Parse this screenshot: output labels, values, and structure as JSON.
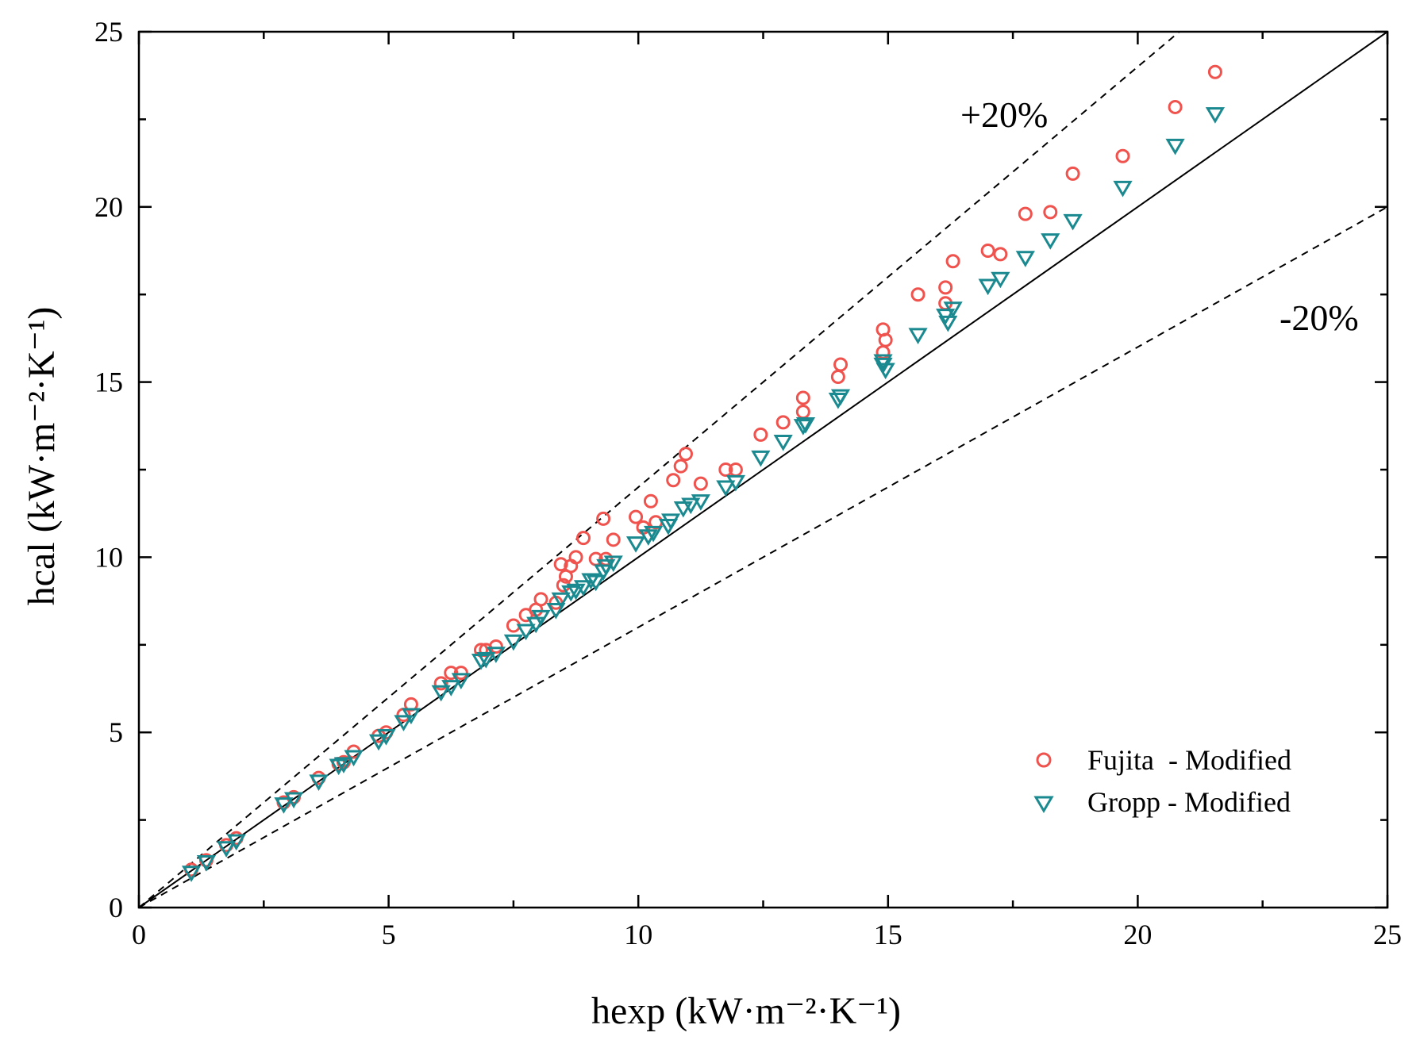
{
  "chart_data": {
    "type": "scatter",
    "xlabel": "hexp (kW·m⁻²·K⁻¹)",
    "ylabel": "hcal (kW·m⁻²·K⁻¹)",
    "xlim": [
      0,
      25
    ],
    "ylim": [
      0,
      25
    ],
    "xticks": [
      "0",
      "5",
      "10",
      "15",
      "20",
      "25"
    ],
    "yticks": [
      "0",
      "5",
      "10",
      "15",
      "20",
      "25"
    ],
    "grid": false,
    "legend_position": "bottom-right",
    "reference_lines": [
      {
        "name": "parity",
        "style": "solid",
        "slope": 1.0
      },
      {
        "name": "+20%",
        "style": "dashed",
        "slope": 1.2,
        "label": "+20%"
      },
      {
        "name": "-20%",
        "style": "dashed",
        "slope": 0.8,
        "label": "-20%"
      }
    ],
    "series": [
      {
        "name": "Fujita  - Modified",
        "marker": "circle",
        "color": "#f0524d",
        "points": [
          [
            1.05,
            1.08
          ],
          [
            1.35,
            1.35
          ],
          [
            1.75,
            1.78
          ],
          [
            1.95,
            1.98
          ],
          [
            2.9,
            3.0
          ],
          [
            3.1,
            3.15
          ],
          [
            3.6,
            3.7
          ],
          [
            4.0,
            4.1
          ],
          [
            4.1,
            4.15
          ],
          [
            4.3,
            4.45
          ],
          [
            4.8,
            4.9
          ],
          [
            4.95,
            5.0
          ],
          [
            5.3,
            5.5
          ],
          [
            5.45,
            5.8
          ],
          [
            6.05,
            6.4
          ],
          [
            6.25,
            6.7
          ],
          [
            6.45,
            6.7
          ],
          [
            6.85,
            7.35
          ],
          [
            6.95,
            7.35
          ],
          [
            7.15,
            7.45
          ],
          [
            7.5,
            8.05
          ],
          [
            7.75,
            8.35
          ],
          [
            7.95,
            8.5
          ],
          [
            8.05,
            8.8
          ],
          [
            8.35,
            8.7
          ],
          [
            8.45,
            9.8
          ],
          [
            8.5,
            9.2
          ],
          [
            8.55,
            9.45
          ],
          [
            8.65,
            9.75
          ],
          [
            8.75,
            10.0
          ],
          [
            8.9,
            10.55
          ],
          [
            9.15,
            9.95
          ],
          [
            9.3,
            11.1
          ],
          [
            9.35,
            9.95
          ],
          [
            9.5,
            10.5
          ],
          [
            9.95,
            11.15
          ],
          [
            10.1,
            10.85
          ],
          [
            10.25,
            11.6
          ],
          [
            10.35,
            11.0
          ],
          [
            10.7,
            12.2
          ],
          [
            10.85,
            12.6
          ],
          [
            10.95,
            12.95
          ],
          [
            11.25,
            12.1
          ],
          [
            11.75,
            12.5
          ],
          [
            11.95,
            12.5
          ],
          [
            12.45,
            13.5
          ],
          [
            12.9,
            13.85
          ],
          [
            13.3,
            14.55
          ],
          [
            13.3,
            14.15
          ],
          [
            14.0,
            15.15
          ],
          [
            14.05,
            15.5
          ],
          [
            14.9,
            16.5
          ],
          [
            14.95,
            16.2
          ],
          [
            14.9,
            15.85
          ],
          [
            15.6,
            17.5
          ],
          [
            16.15,
            17.7
          ],
          [
            16.15,
            17.25
          ],
          [
            16.3,
            18.45
          ],
          [
            17.0,
            18.75
          ],
          [
            17.25,
            18.65
          ],
          [
            17.75,
            19.8
          ],
          [
            18.25,
            19.85
          ],
          [
            18.7,
            20.95
          ],
          [
            19.7,
            21.45
          ],
          [
            20.75,
            22.85
          ],
          [
            21.55,
            23.85
          ]
        ]
      },
      {
        "name": "Gropp - Modified",
        "marker": "triangle-down",
        "color": "#1a8a90",
        "points": [
          [
            1.05,
            1.0
          ],
          [
            1.35,
            1.3
          ],
          [
            1.75,
            1.7
          ],
          [
            1.95,
            1.9
          ],
          [
            2.9,
            2.95
          ],
          [
            3.1,
            3.1
          ],
          [
            3.6,
            3.6
          ],
          [
            4.0,
            4.05
          ],
          [
            4.1,
            4.1
          ],
          [
            4.3,
            4.3
          ],
          [
            4.8,
            4.75
          ],
          [
            4.95,
            4.9
          ],
          [
            5.3,
            5.3
          ],
          [
            5.45,
            5.5
          ],
          [
            6.05,
            6.15
          ],
          [
            6.25,
            6.3
          ],
          [
            6.45,
            6.5
          ],
          [
            6.85,
            7.05
          ],
          [
            6.95,
            7.1
          ],
          [
            7.15,
            7.25
          ],
          [
            7.5,
            7.6
          ],
          [
            7.75,
            7.9
          ],
          [
            7.95,
            8.1
          ],
          [
            8.05,
            8.3
          ],
          [
            8.35,
            8.5
          ],
          [
            8.45,
            8.8
          ],
          [
            8.65,
            9.0
          ],
          [
            8.75,
            9.05
          ],
          [
            8.9,
            9.15
          ],
          [
            9.05,
            9.35
          ],
          [
            9.15,
            9.3
          ],
          [
            9.3,
            9.6
          ],
          [
            9.35,
            9.75
          ],
          [
            9.5,
            9.85
          ],
          [
            9.95,
            10.4
          ],
          [
            10.2,
            10.6
          ],
          [
            10.3,
            10.7
          ],
          [
            10.6,
            10.9
          ],
          [
            10.65,
            11.05
          ],
          [
            10.9,
            11.4
          ],
          [
            11.05,
            11.5
          ],
          [
            11.25,
            11.6
          ],
          [
            11.75,
            12.0
          ],
          [
            11.95,
            12.15
          ],
          [
            12.45,
            12.85
          ],
          [
            12.9,
            13.3
          ],
          [
            13.3,
            13.75
          ],
          [
            13.35,
            13.8
          ],
          [
            14.0,
            14.5
          ],
          [
            14.05,
            14.6
          ],
          [
            14.9,
            15.5
          ],
          [
            14.95,
            15.35
          ],
          [
            14.9,
            15.6
          ],
          [
            15.6,
            16.35
          ],
          [
            16.15,
            16.9
          ],
          [
            16.2,
            16.7
          ],
          [
            16.3,
            17.1
          ],
          [
            17.0,
            17.75
          ],
          [
            17.25,
            17.95
          ],
          [
            17.75,
            18.55
          ],
          [
            18.25,
            19.05
          ],
          [
            18.7,
            19.6
          ],
          [
            19.7,
            20.55
          ],
          [
            20.75,
            21.75
          ],
          [
            21.55,
            22.65
          ]
        ]
      }
    ]
  }
}
